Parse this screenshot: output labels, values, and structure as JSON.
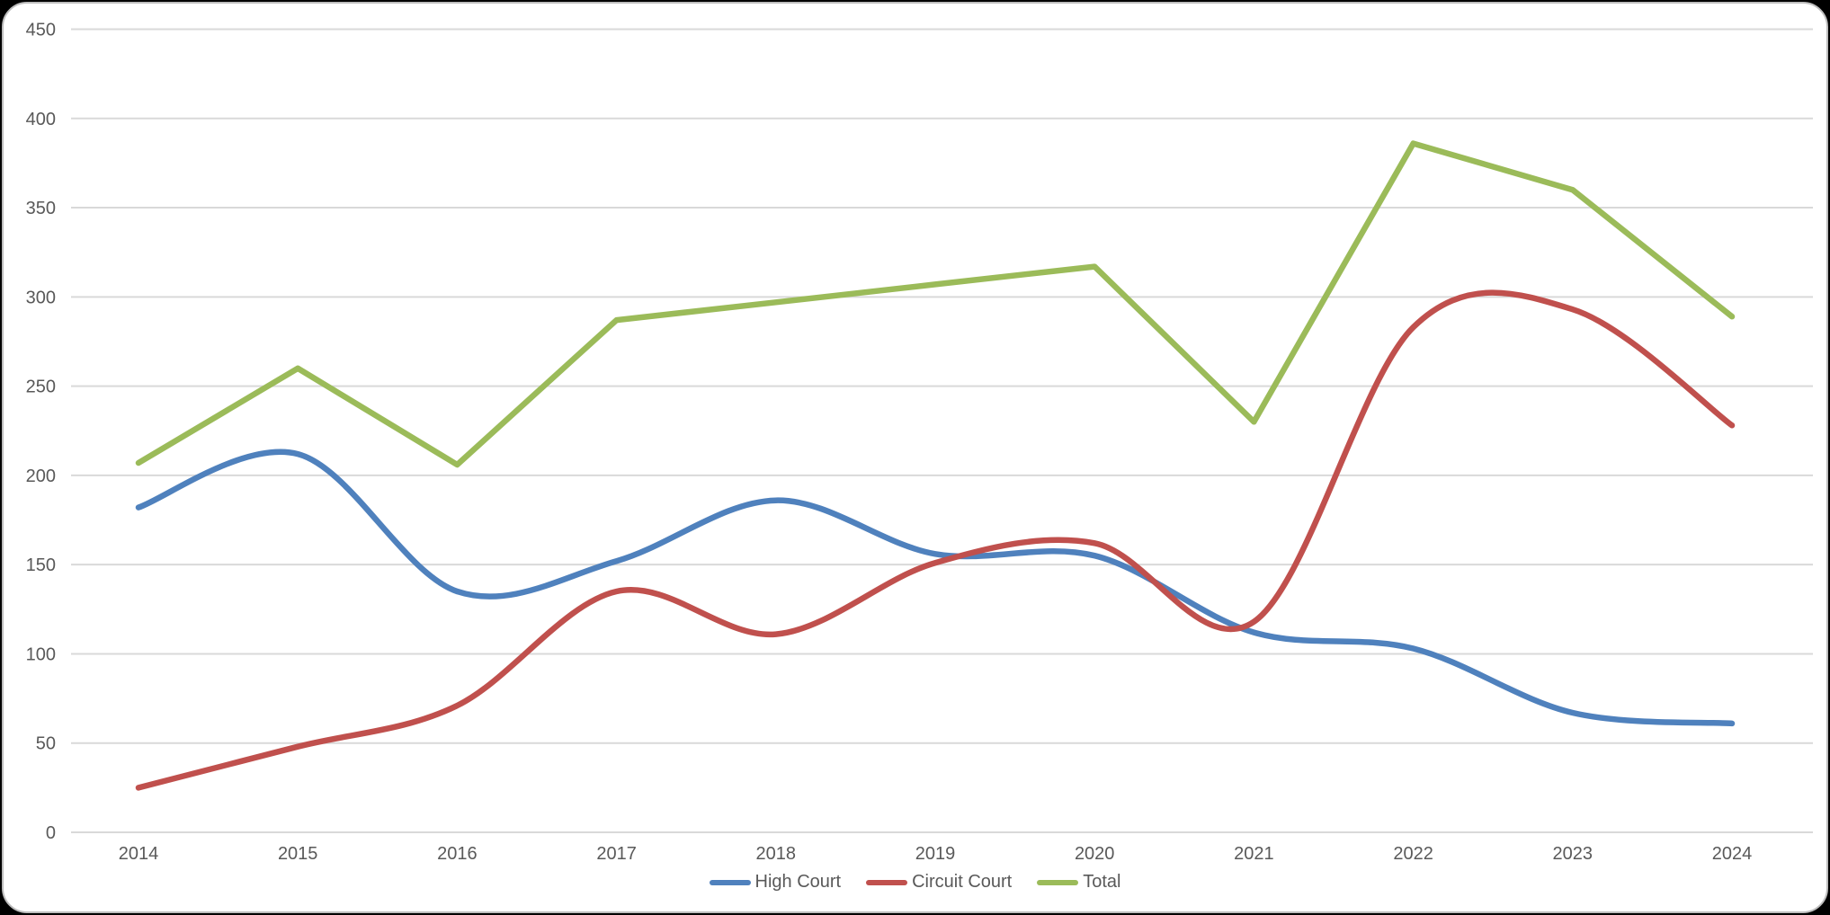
{
  "chart_data": {
    "type": "line",
    "title": "",
    "categories": [
      "2014",
      "2015",
      "2016",
      "2017",
      "2018",
      "2019",
      "2020",
      "2021",
      "2022",
      "2023",
      "2024"
    ],
    "series": [
      {
        "name": "High Court",
        "color": "#4F81BD",
        "smooth": true,
        "values": [
          182,
          212,
          135,
          152,
          186,
          156,
          155,
          112,
          103,
          67,
          61
        ]
      },
      {
        "name": "Circuit Court",
        "color": "#C0504D",
        "smooth": true,
        "values": [
          25,
          48,
          71,
          135,
          111,
          151,
          162,
          118,
          283,
          293,
          228
        ]
      },
      {
        "name": "Total",
        "color": "#9BBB59",
        "smooth": false,
        "values": [
          207,
          260,
          206,
          287,
          297,
          307,
          317,
          230,
          386,
          360,
          289
        ]
      }
    ],
    "ylim": [
      0,
      450
    ],
    "ytick_step": 50,
    "ytick_labels": [
      "0",
      "50",
      "100",
      "150",
      "200",
      "250",
      "300",
      "350",
      "400",
      "450"
    ],
    "grid": true,
    "legend_position": "bottom",
    "colors": {
      "gridline": "#D9D9D9",
      "axis_text": "#595959",
      "frame_border": "#BDBDBD",
      "plot_background": "#FFFFFF"
    }
  }
}
